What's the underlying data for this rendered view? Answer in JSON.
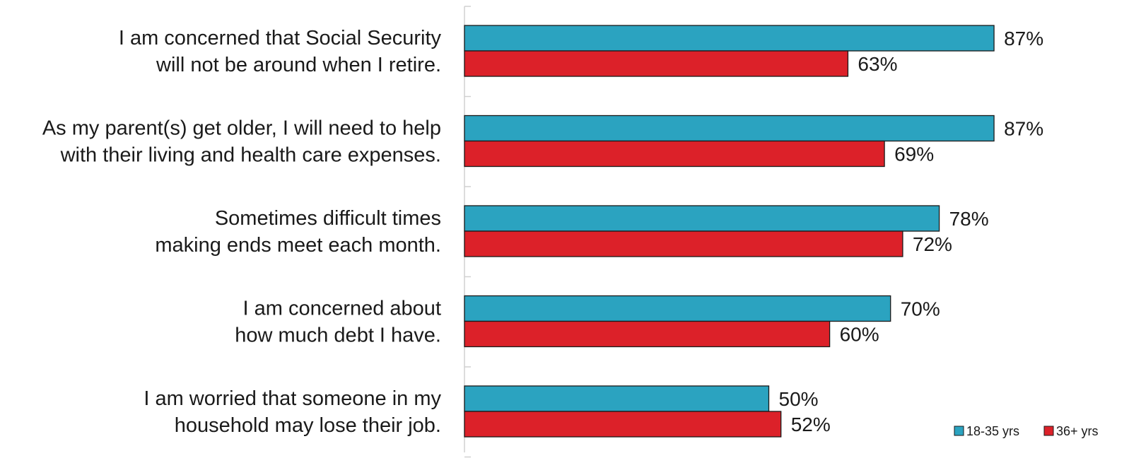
{
  "chart_data": {
    "type": "bar",
    "orientation": "horizontal",
    "categories": [
      [
        "I am concerned that Social Security",
        "will not be around when I retire."
      ],
      [
        "As my parent(s) get older, I will need to help",
        "with their living and health care expenses."
      ],
      [
        "Sometimes difficult times",
        "making ends meet each month."
      ],
      [
        "I am concerned about",
        "how much debt I have."
      ],
      [
        "I am worried that someone in my",
        "household may lose their job."
      ]
    ],
    "series": [
      {
        "name": "18-35 yrs",
        "color": "#2ba3c0",
        "values": [
          87,
          87,
          78,
          70,
          50
        ],
        "labels": [
          "87%",
          "87%",
          "78%",
          "70%",
          "50%"
        ]
      },
      {
        "name": "36+ yrs",
        "color": "#dc2129",
        "values": [
          63,
          69,
          72,
          60,
          52
        ],
        "labels": [
          "63%",
          "69%",
          "72%",
          "60%",
          "52%"
        ]
      }
    ],
    "xlim": [
      0,
      100
    ],
    "grid": false,
    "legend_position": "bottom-right",
    "data_labels": true
  }
}
